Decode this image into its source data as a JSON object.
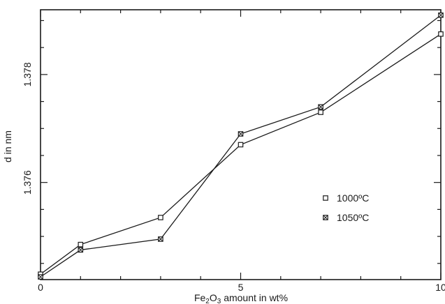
{
  "chart_data": {
    "type": "line",
    "xlabel": "Fe2O3 amount in wt%",
    "ylabel": "d in nm",
    "xlim": [
      0,
      10
    ],
    "ylim": [
      1.3742,
      1.3792
    ],
    "x_ticks": [
      0,
      5,
      10
    ],
    "y_ticks": [
      1.376,
      1.378
    ],
    "grid": false,
    "legend_position": "right-middle",
    "series": [
      {
        "name": "1000ºC",
        "marker": "square",
        "x": [
          0,
          1,
          3,
          5,
          7,
          10
        ],
        "y": [
          1.3743,
          1.37485,
          1.37535,
          1.3767,
          1.3773,
          1.37875
        ]
      },
      {
        "name": "1050ºC",
        "marker": "crossed-square",
        "x": [
          0,
          1,
          3,
          5,
          7,
          10
        ],
        "y": [
          1.37425,
          1.37475,
          1.37495,
          1.3769,
          1.3774,
          1.3791
        ]
      }
    ]
  }
}
